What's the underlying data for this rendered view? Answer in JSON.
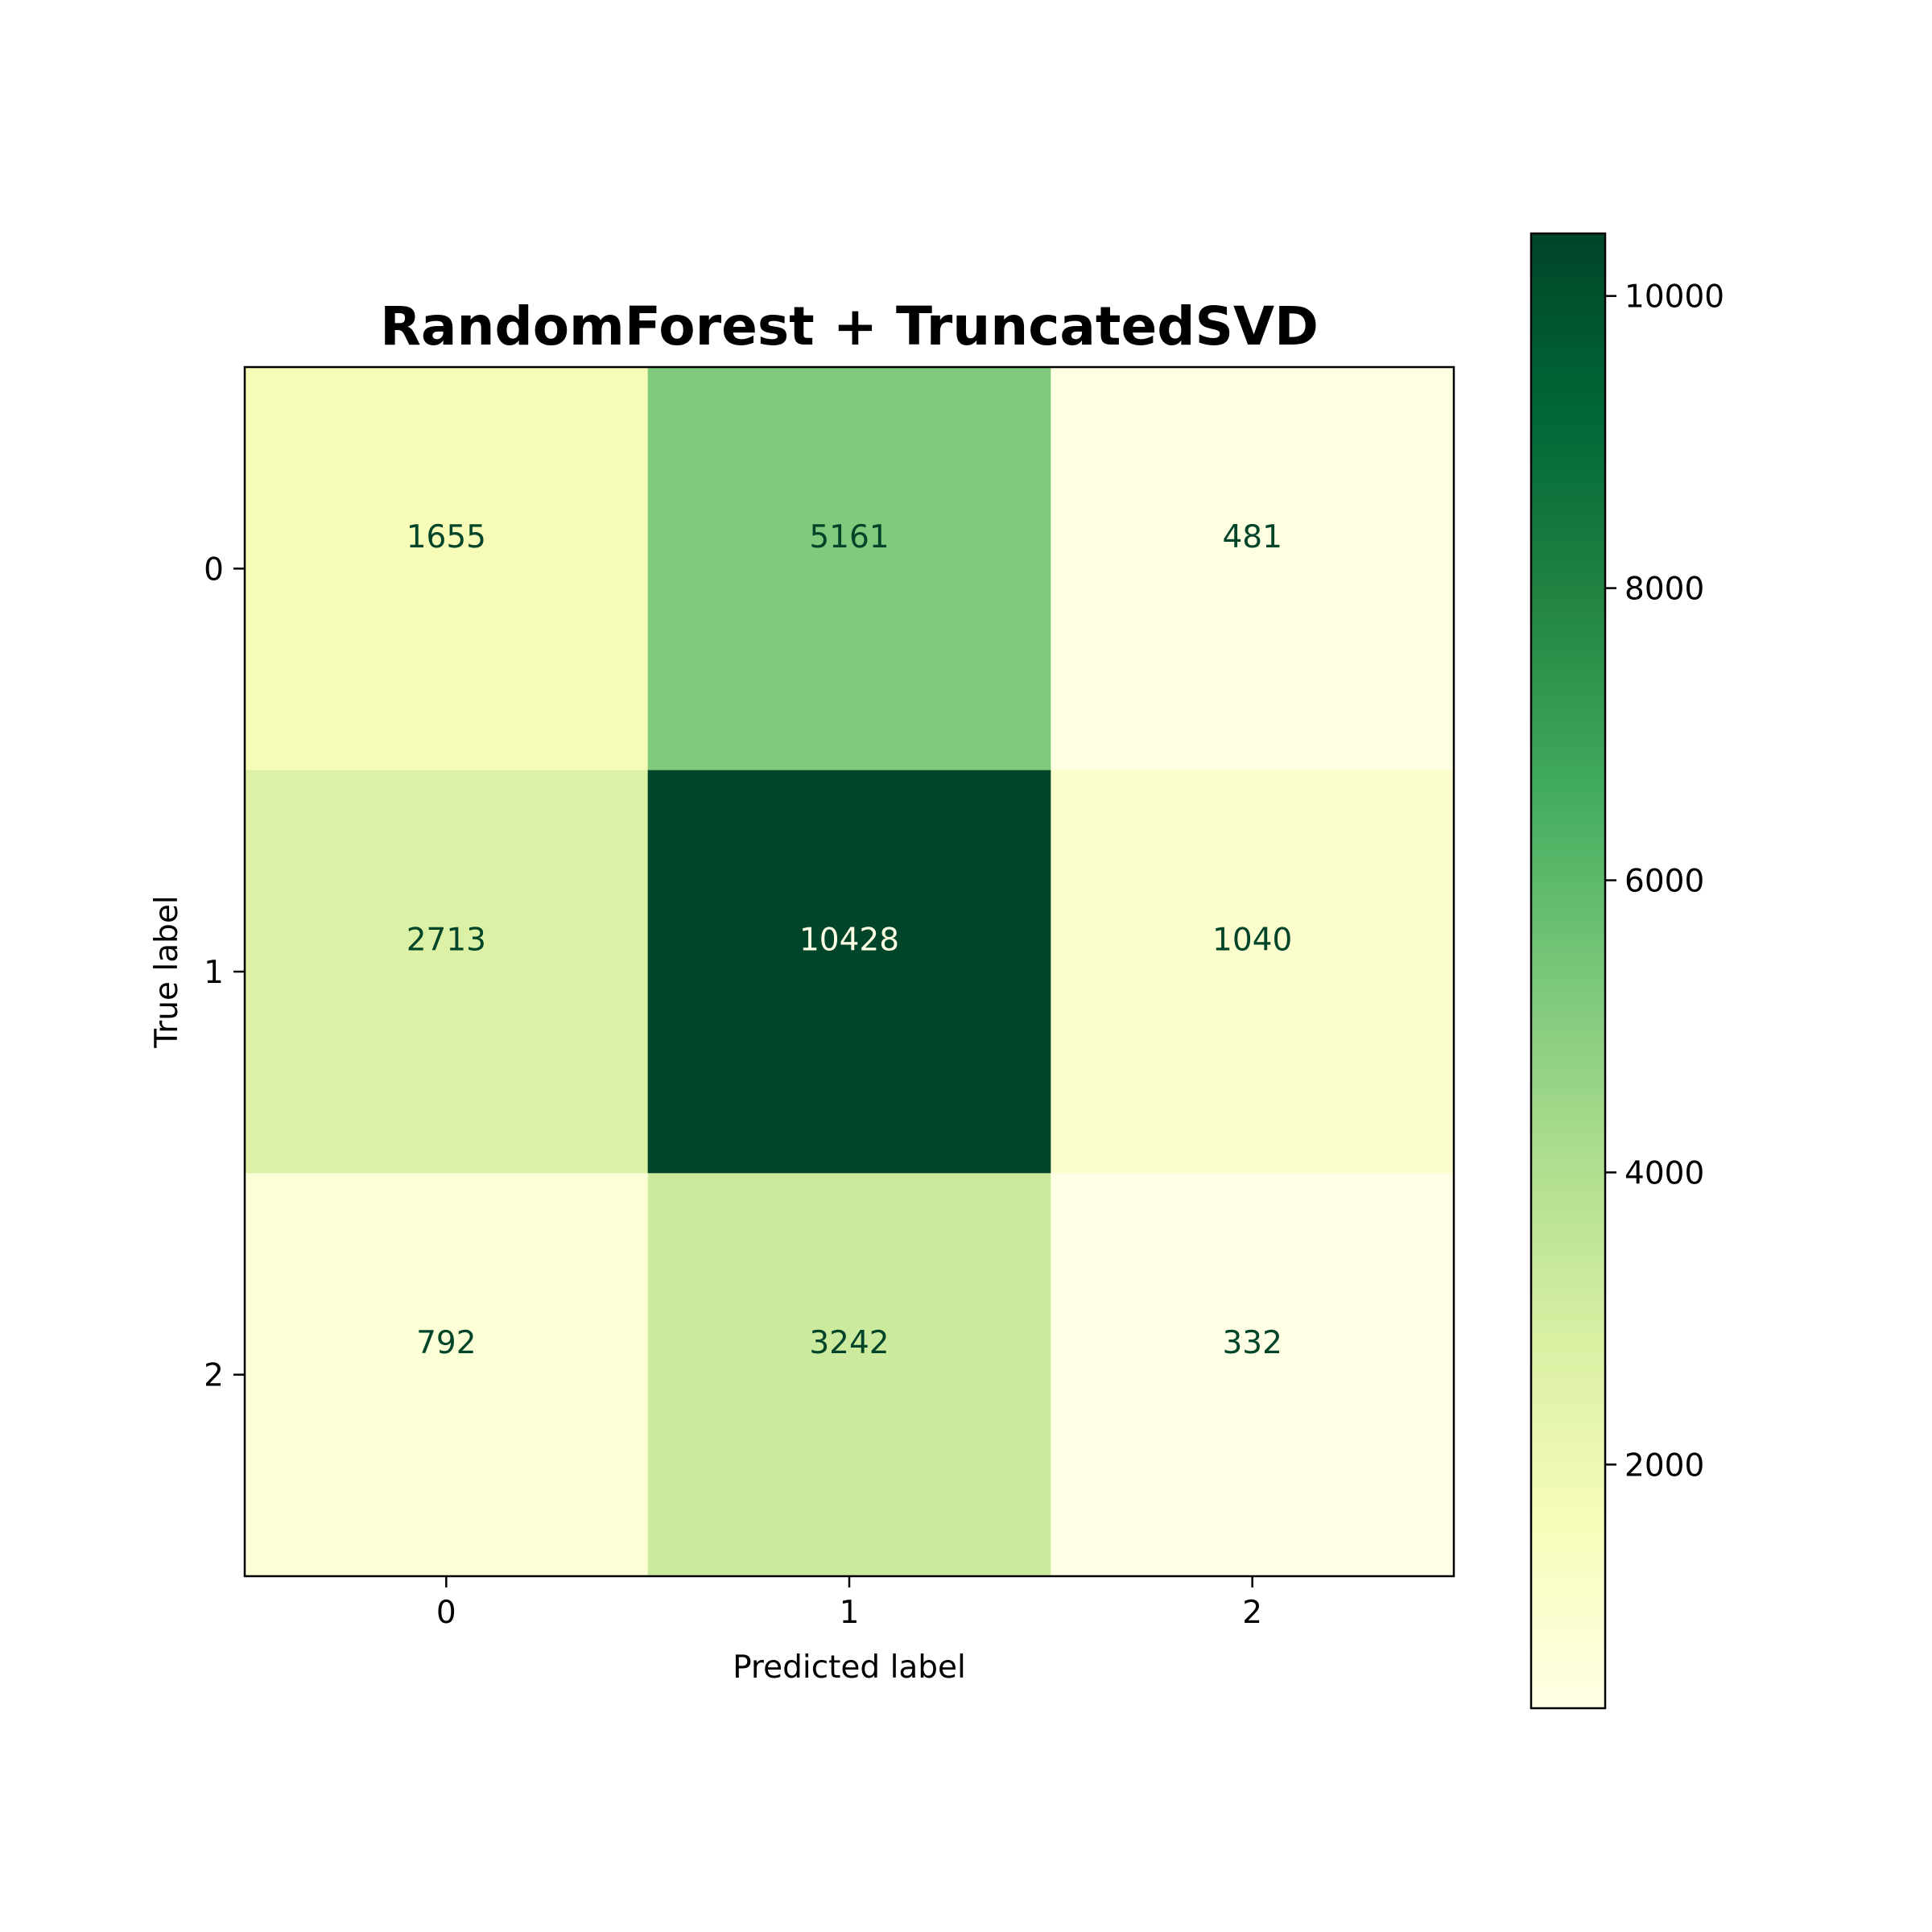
{
  "chart_data": {
    "type": "heatmap",
    "title": "RandomForest + TruncatedSVD",
    "xlabel": "Predicted label",
    "ylabel": "True label",
    "x_categories": [
      "0",
      "1",
      "2"
    ],
    "y_categories": [
      "0",
      "1",
      "2"
    ],
    "values": [
      [
        1655,
        5161,
        481
      ],
      [
        2713,
        10428,
        1040
      ],
      [
        792,
        3242,
        332
      ]
    ],
    "colormap": "YlGn",
    "colorbar": {
      "min": 332,
      "max": 10428,
      "ticks": [
        2000,
        4000,
        6000,
        8000,
        10000
      ],
      "tick_labels": [
        "2000",
        "4000",
        "6000",
        "8000",
        "10000"
      ]
    },
    "colorbar_stops": [
      "#ffffe5",
      "#f7fcb9",
      "#d9f0a3",
      "#addd8e",
      "#78c679",
      "#41ab5d",
      "#238443",
      "#006837",
      "#004529"
    ],
    "text_color_light": "#ffffe5",
    "text_color_dark": "#004529"
  }
}
